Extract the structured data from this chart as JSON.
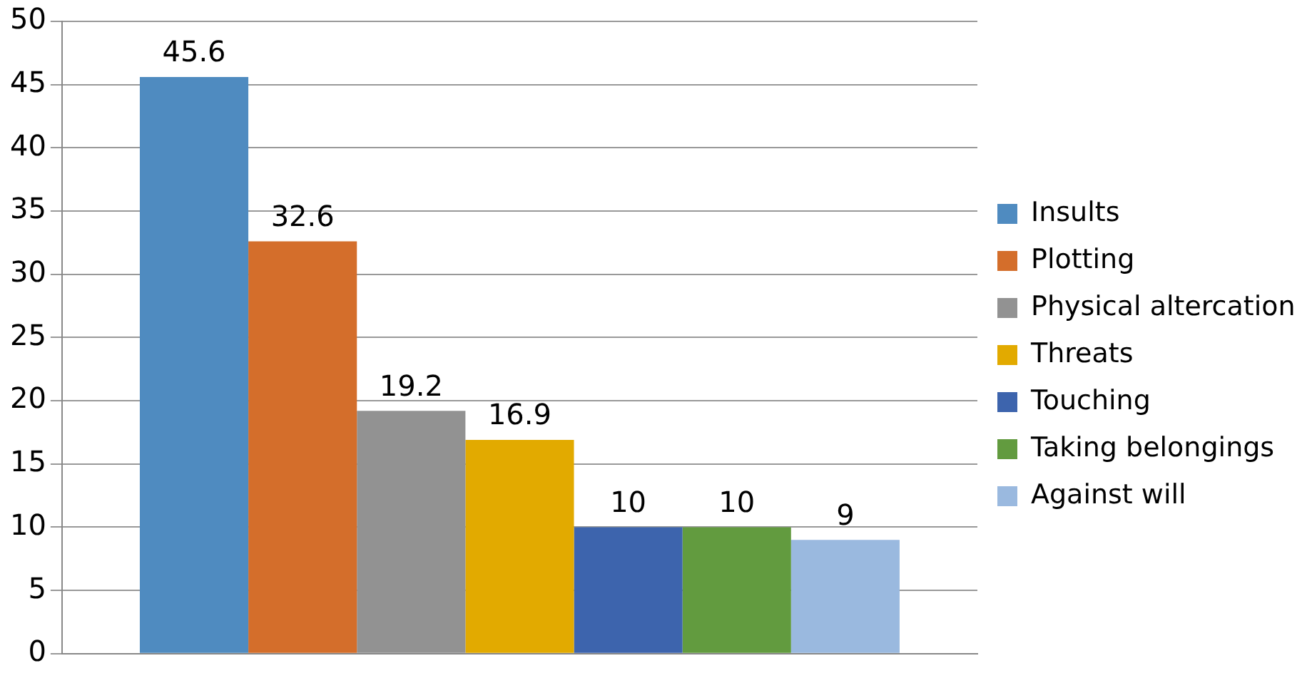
{
  "chart_data": {
    "type": "bar",
    "categories": [
      null
    ],
    "series": [
      {
        "name": "Insults",
        "color": "#4f8bc0",
        "values": [
          45.6
        ]
      },
      {
        "name": "Plotting",
        "color": "#d46e2b",
        "values": [
          32.6
        ]
      },
      {
        "name": "Physical altercation",
        "color": "#929292",
        "values": [
          19.2
        ]
      },
      {
        "name": "Threats",
        "color": "#e2aa00",
        "values": [
          16.9
        ]
      },
      {
        "name": "Touching",
        "color": "#3d64ad",
        "values": [
          10
        ]
      },
      {
        "name": "Taking belongings",
        "color": "#629b3f",
        "values": [
          10
        ]
      },
      {
        "name": "Against will",
        "color": "#9ab9df",
        "values": [
          9
        ]
      }
    ],
    "ylim": [
      0,
      50
    ],
    "yticks": [
      0,
      5,
      10,
      15,
      20,
      25,
      30,
      35,
      40,
      45,
      50
    ],
    "grid": "y",
    "legend": "right",
    "data_labels": true
  }
}
